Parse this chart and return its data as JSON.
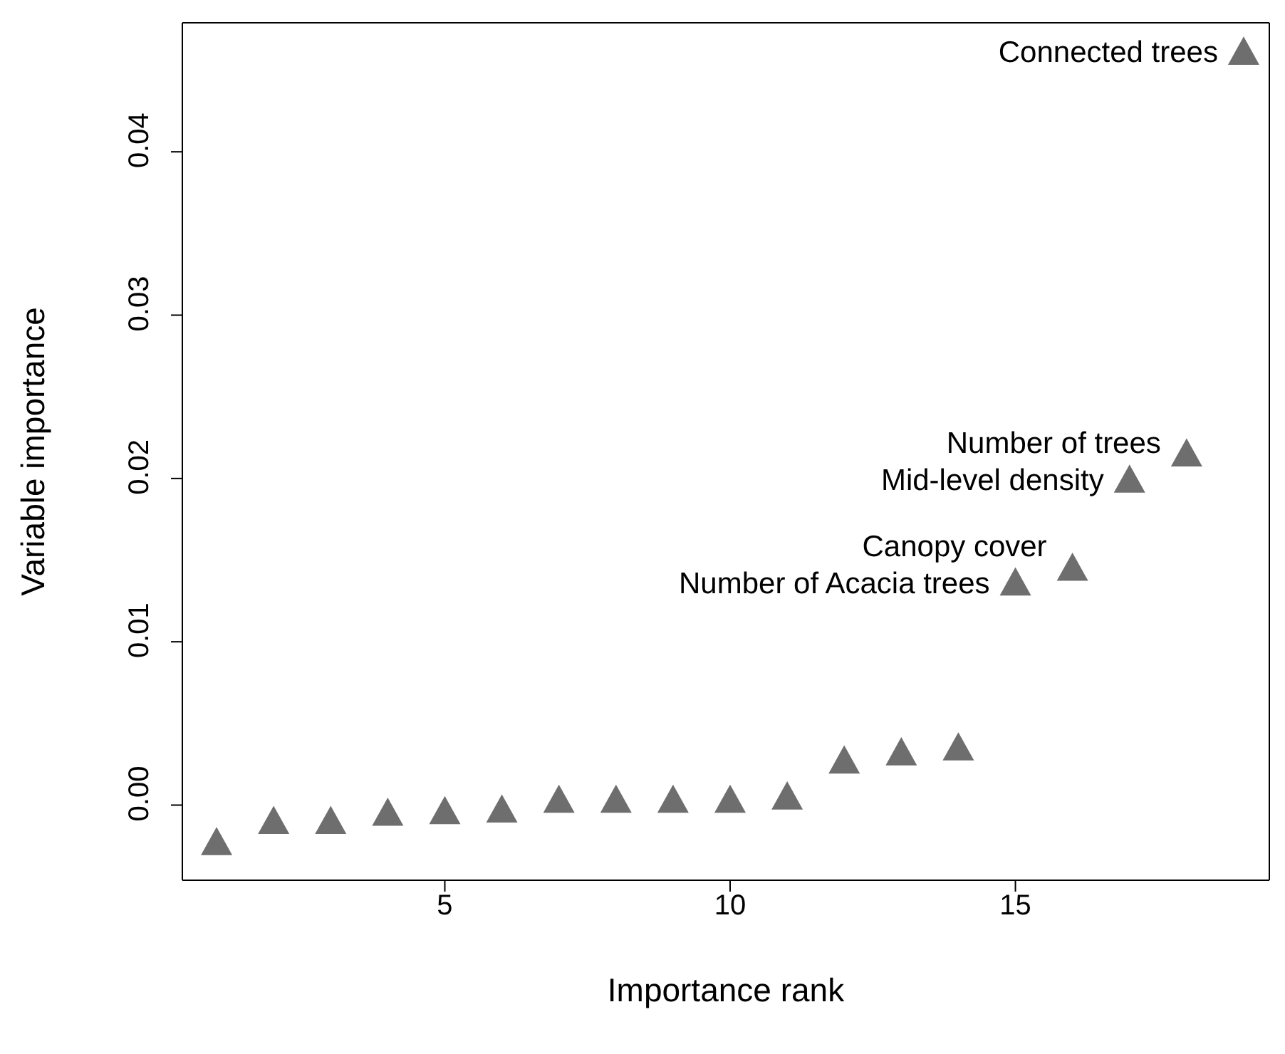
{
  "chart_data": {
    "type": "scatter",
    "xlabel": "Importance rank",
    "ylabel": "Variable importance",
    "x": [
      1,
      2,
      3,
      4,
      5,
      6,
      7,
      8,
      9,
      10,
      11,
      12,
      13,
      14,
      15,
      16,
      17,
      18,
      19
    ],
    "values": [
      -0.0023,
      -0.001,
      -0.001,
      -0.0005,
      -0.0004,
      -0.0003,
      0.0003,
      0.0003,
      0.0003,
      0.0003,
      0.0005,
      0.0027,
      0.0032,
      0.0035,
      0.0136,
      0.0145,
      0.0199,
      0.0215,
      0.0461
    ],
    "color": "#6e6e6e",
    "marker": "triangle",
    "grid": false,
    "xlim": [
      0.4,
      19.45
    ],
    "xticks": [
      5,
      10,
      15
    ],
    "ylim": [
      -0.0046,
      0.0479
    ],
    "yticks": [
      {
        "value": 0,
        "label": "0.00"
      },
      {
        "value": 0.01,
        "label": "0.01"
      },
      {
        "value": 0.02,
        "label": "0.02"
      },
      {
        "value": 0.03,
        "label": "0.03"
      },
      {
        "value": 0.04,
        "label": "0.04"
      }
    ],
    "annotations": [
      {
        "text": "Connected trees",
        "x": 19,
        "y": 0.0461
      },
      {
        "text": "Number of trees",
        "x": 18,
        "y": 0.0215
      },
      {
        "text": "Mid-level density",
        "x": 17,
        "y": 0.0199
      },
      {
        "text": "Canopy cover",
        "x": 16,
        "y": 0.0145
      },
      {
        "text": "Number of Acacia trees",
        "x": 15,
        "y": 0.0136
      }
    ]
  }
}
